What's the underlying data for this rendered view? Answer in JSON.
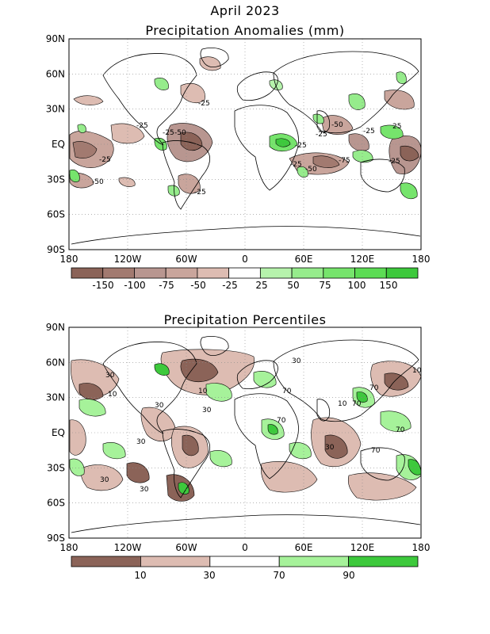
{
  "header": {
    "title_line1": "April 2023",
    "panel1_title": "Precipitation Anomalies (mm)",
    "panel2_title": "Precipitation Percentiles"
  },
  "axes": {
    "lat_labels": [
      "90N",
      "60N",
      "30N",
      "EQ",
      "30S",
      "60S",
      "90S"
    ],
    "lon_labels": [
      "180",
      "120W",
      "60W",
      "0",
      "60E",
      "120E",
      "180"
    ]
  },
  "anomaly_colorbar": {
    "colors": [
      "#8b6358",
      "#a27a70",
      "#b89690",
      "#c9a59c",
      "#ddbcb2",
      "#ffffff",
      "#b6f3ac",
      "#96ec8c",
      "#76e46c",
      "#5cdc54",
      "#3dc93c"
    ],
    "labels": [
      "-150",
      "-100",
      "-75",
      "-50",
      "-25",
      "25",
      "50",
      "75",
      "100",
      "150"
    ]
  },
  "percentile_colorbar": {
    "colors": [
      "#8b6358",
      "#ddbcb2",
      "#ffffff",
      "#a6f29a",
      "#3dc93c"
    ],
    "labels": [
      "10",
      "30",
      "70",
      "90"
    ]
  },
  "map_contour_labels": {
    "anomaly": [
      "-25",
      "-25",
      "-25",
      "-50",
      "-25",
      "-25",
      "-50",
      "-25",
      "-25",
      "-75",
      "-25",
      "-25",
      "-50",
      "25",
      "-25",
      "-50"
    ],
    "percentile": [
      "30",
      "10",
      "30",
      "30",
      "10",
      "70",
      "30",
      "70",
      "70",
      "30",
      "10",
      "70",
      "70",
      "70",
      "30",
      "30",
      "30",
      "10"
    ]
  },
  "colors": {
    "dry_strong": "#8b6358",
    "dry_light": "#ddbcb2",
    "wet_light": "#a6f29a",
    "wet_strong": "#3dc93c"
  }
}
